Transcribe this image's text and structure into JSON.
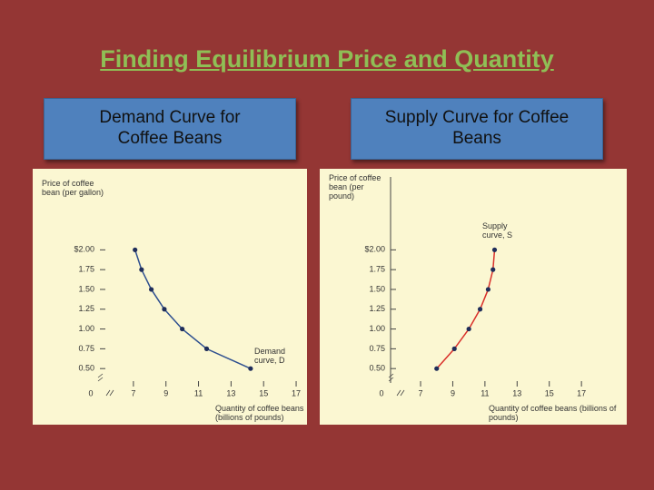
{
  "title": "Finding Equilibrium Price and Quantity",
  "chart_data": [
    {
      "type": "line",
      "title": "Demand Curve for Coffee Beans",
      "y_label": "Price of coffee bean (per gallon)",
      "x_label": "Quantity of coffee beans (billions of pounds)",
      "origin_label": "0",
      "annotation": "Demand curve, D",
      "xlim": [
        5.5,
        17.5
      ],
      "xticks": [
        7,
        9,
        11,
        13,
        15,
        17
      ],
      "ylim": [
        0.25,
        2.6
      ],
      "yticks": [
        {
          "value": 0.5,
          "label": "0.50"
        },
        0.75,
        {
          "value": 1,
          "label": "1.00"
        },
        1.25,
        {
          "value": 1.5,
          "label": "1.50"
        },
        1.75,
        {
          "value": 2,
          "label": "$2.00"
        }
      ],
      "series": [
        {
          "color": "#2e4f8f",
          "marker_color": "#1f2d5a",
          "x": [
            7.1,
            7.5,
            8.1,
            8.9,
            10.0,
            11.5,
            14.2
          ],
          "values": [
            2.0,
            1.75,
            1.5,
            1.25,
            1.0,
            0.75,
            0.5
          ]
        }
      ]
    },
    {
      "type": "line",
      "title": "Supply Curve for Coffee Beans",
      "y_label": "Price of coffee bean (per pound)",
      "x_label": "Quantity of coffee beans (billions of pounds)",
      "origin_label": "0",
      "annotation": "Supply curve, S",
      "xlim": [
        5.7,
        17.5
      ],
      "xticks": [
        7,
        9,
        11,
        13,
        15,
        17
      ],
      "ylim": [
        0.25,
        2.6
      ],
      "yticks": [
        {
          "value": 0.5,
          "label": "0.50"
        },
        0.75,
        {
          "value": 1,
          "label": "1.00"
        },
        1.25,
        {
          "value": 1.5,
          "label": "1.50"
        },
        1.75,
        {
          "value": 2,
          "label": "$2.00"
        }
      ],
      "series": [
        {
          "color": "#d9302a",
          "marker_color": "#1f2d5a",
          "x": [
            8.0,
            9.1,
            10.0,
            10.7,
            11.2,
            11.5,
            11.6
          ],
          "values": [
            0.5,
            0.75,
            1.0,
            1.25,
            1.5,
            1.75,
            2.0
          ]
        }
      ]
    }
  ]
}
